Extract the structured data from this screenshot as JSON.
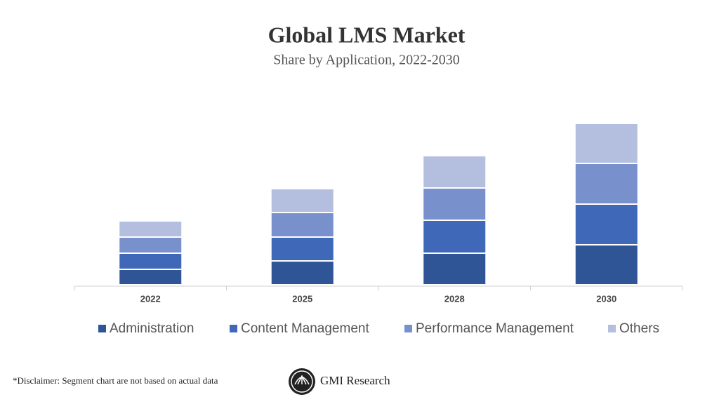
{
  "chart_data": {
    "type": "stacked_bar",
    "title": "Global LMS Market",
    "subtitle": "Share by Application, 2022-2030",
    "categories": [
      "2022",
      "2025",
      "2028",
      "2030"
    ],
    "series": [
      {
        "name": "Administration",
        "color": "#2f5597",
        "values": [
          22,
          34,
          45,
          57
        ]
      },
      {
        "name": "Content Management",
        "color": "#3f69b8",
        "values": [
          23,
          34,
          47,
          58
        ]
      },
      {
        "name": "Performance Management",
        "color": "#7891cc",
        "values": [
          23,
          35,
          46,
          58
        ]
      },
      {
        "name": "Others",
        "color": "#b4bfe0",
        "values": [
          23,
          34,
          46,
          57
        ]
      }
    ],
    "ylim": [
      0,
      250
    ]
  },
  "footer": {
    "disclaimer": "*Disclaimer:  Segment chart are not based on actual data",
    "brand": "GMI Research"
  }
}
